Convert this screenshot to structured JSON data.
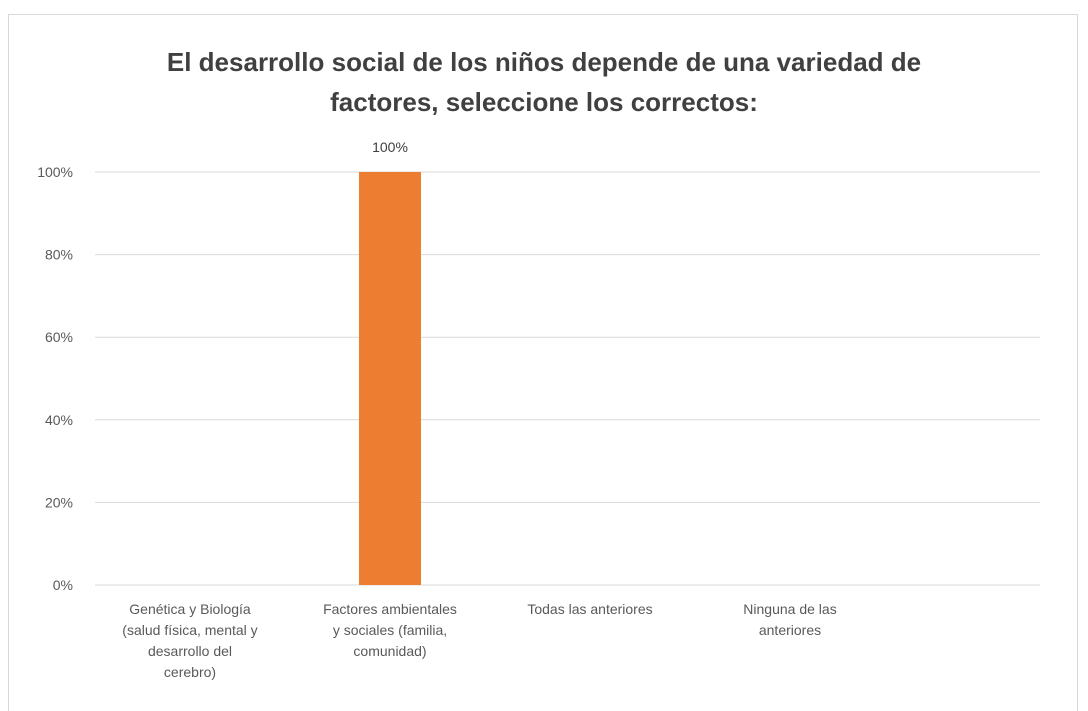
{
  "chart_data": {
    "type": "bar",
    "title_lines": [
      "El desarrollo social de los niños depende de una variedad de",
      "factores, seleccione los correctos:"
    ],
    "categories": [
      [
        "Genética y Biología",
        "(salud física, mental y",
        "desarrollo del",
        "cerebro)"
      ],
      [
        "Factores ambientales",
        "y sociales (familia,",
        "comunidad)"
      ],
      [
        "Todas las anteriores"
      ],
      [
        "Ninguna de las",
        "anteriores"
      ]
    ],
    "values": [
      0,
      1,
      0,
      0
    ],
    "data_labels": [
      "",
      "100%",
      "",
      ""
    ],
    "ylim": [
      0,
      1
    ],
    "yticks": [
      0,
      0.2,
      0.4,
      0.6,
      0.8,
      1.0
    ],
    "ytick_labels": [
      "0%",
      "20%",
      "40%",
      "60%",
      "80%",
      "100%"
    ],
    "grid": true,
    "legend": "none",
    "bar_color": "#ed7d31",
    "grid_color": "#d9d9d9"
  }
}
